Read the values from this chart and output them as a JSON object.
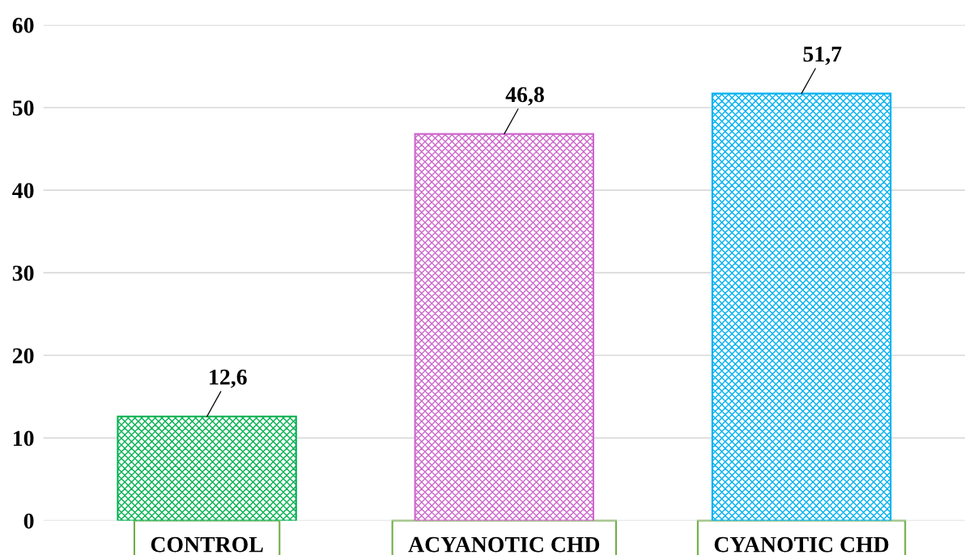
{
  "chart_data": {
    "type": "bar",
    "categories": [
      "CONTROL",
      "ACYANOTIC CHD",
      "CYANOTIC CHD"
    ],
    "values": [
      12.6,
      46.8,
      51.7
    ],
    "colors": [
      "#00b050",
      "#cc66cc",
      "#00b0f0"
    ],
    "value_labels": [
      "12,6",
      "46,8",
      "51,7"
    ],
    "ylim": [
      0,
      60
    ],
    "yticks": [
      0,
      10,
      20,
      30,
      40,
      50,
      60
    ],
    "grid": "y"
  }
}
